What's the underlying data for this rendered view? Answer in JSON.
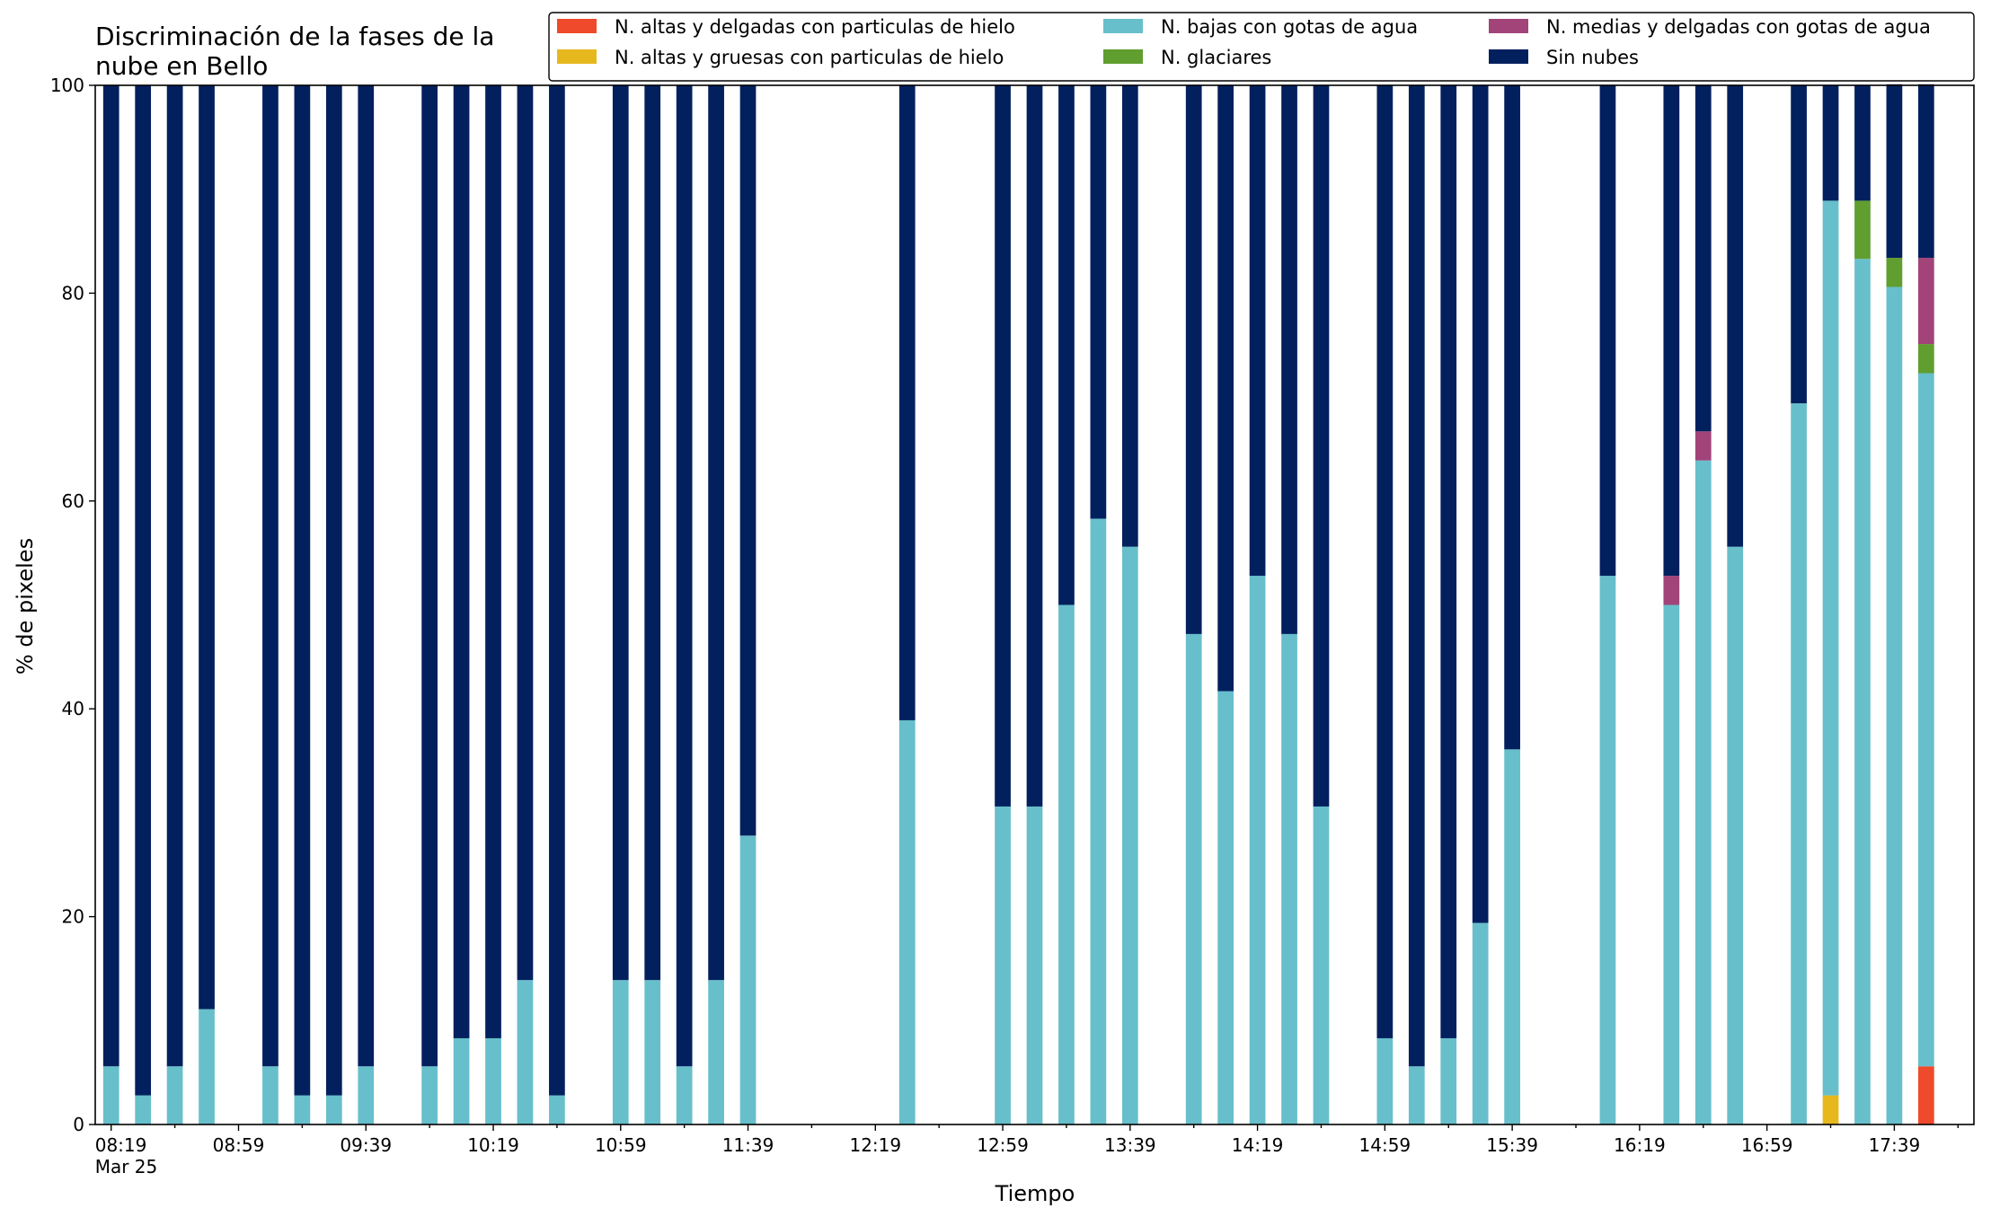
{
  "chart_data": {
    "type": "bar",
    "stacked": true,
    "title": "Discriminación de la fases de la\nnube en Bello",
    "xlabel": "Tiempo",
    "ylabel": "% de pixeles",
    "ylim": [
      0,
      100
    ],
    "yticks": [
      0,
      20,
      40,
      60,
      80,
      100
    ],
    "grid": false,
    "legend_position": "top-right",
    "legend_columns": 3,
    "x_start_minutes": 499,
    "x_step_minutes": 10,
    "x_range_slots": [
      -0.5,
      58.5
    ],
    "xtick_minor_every": 2,
    "xtick_major_every": 4,
    "xtick_labels": [
      "08:19\nMar 25",
      "08:59",
      "09:39",
      "10:19",
      "10:59",
      "11:39",
      "12:19",
      "12:59",
      "13:39",
      "14:19",
      "14:59",
      "15:39",
      "16:19",
      "16:59",
      "17:39"
    ],
    "x": [
      "08:19",
      "08:29",
      "08:39",
      "08:49",
      "09:09",
      "09:19",
      "09:29",
      "09:39",
      "09:59",
      "10:09",
      "10:19",
      "10:29",
      "10:39",
      "10:59",
      "11:09",
      "11:19",
      "11:29",
      "11:39",
      "12:29",
      "12:59",
      "13:09",
      "13:19",
      "13:29",
      "13:39",
      "13:59",
      "14:09",
      "14:19",
      "14:29",
      "14:39",
      "14:59",
      "15:09",
      "15:19",
      "15:29",
      "15:39",
      "16:09",
      "16:29",
      "16:39",
      "16:49",
      "17:09",
      "17:19",
      "17:29",
      "17:39",
      "17:49"
    ],
    "series": [
      {
        "name": "N. altas y delgadas con particulas de hielo",
        "color": "#ef4a2b",
        "values": [
          0,
          0,
          0,
          0,
          0,
          0,
          0,
          0,
          0,
          0,
          0,
          0,
          0,
          0,
          0,
          0,
          0,
          0,
          0,
          0,
          0,
          0,
          0,
          0,
          0,
          0,
          0,
          0,
          0,
          0,
          0,
          0,
          0,
          0,
          0,
          0,
          0,
          0,
          0,
          0,
          0,
          0,
          5.6
        ]
      },
      {
        "name": "N. altas y gruesas con particulas de hielo",
        "color": "#e6b81e",
        "values": [
          0,
          0,
          0,
          0,
          0,
          0,
          0,
          0,
          0,
          0,
          0,
          0,
          0,
          0,
          0,
          0,
          0,
          0,
          0,
          0,
          0,
          0,
          0,
          0,
          0,
          0,
          0,
          0,
          0,
          0,
          0,
          0,
          0,
          0,
          0,
          0,
          0,
          0,
          0,
          2.8,
          0,
          0,
          0
        ]
      },
      {
        "name": "N. bajas con gotas de agua",
        "color": "#67bfcb",
        "values": [
          5.6,
          2.8,
          5.6,
          11.1,
          5.6,
          2.8,
          2.8,
          5.6,
          5.6,
          8.3,
          8.3,
          13.9,
          2.8,
          13.9,
          13.9,
          5.6,
          13.9,
          27.8,
          38.9,
          30.6,
          30.6,
          50.0,
          58.3,
          55.6,
          47.2,
          41.7,
          52.8,
          47.2,
          30.6,
          8.3,
          5.6,
          8.3,
          19.4,
          36.1,
          52.8,
          50.0,
          63.9,
          55.6,
          69.4,
          86.1,
          83.3,
          80.6,
          66.7
        ]
      },
      {
        "name": "N. glaciares",
        "color": "#5f9e2f",
        "values": [
          0,
          0,
          0,
          0,
          0,
          0,
          0,
          0,
          0,
          0,
          0,
          0,
          0,
          0,
          0,
          0,
          0,
          0,
          0,
          0,
          0,
          0,
          0,
          0,
          0,
          0,
          0,
          0,
          0,
          0,
          0,
          0,
          0,
          0,
          0,
          0,
          0,
          0,
          0,
          0,
          5.6,
          2.8,
          2.8
        ]
      },
      {
        "name": "N. medias y delgadas con gotas de agua",
        "color": "#a2437a",
        "values": [
          0,
          0,
          0,
          0,
          0,
          0,
          0,
          0,
          0,
          0,
          0,
          0,
          0,
          0,
          0,
          0,
          0,
          0,
          0,
          0,
          0,
          0,
          0,
          0,
          0,
          0,
          0,
          0,
          0,
          0,
          0,
          0,
          0,
          0,
          0,
          2.8,
          2.8,
          0,
          0,
          0,
          0,
          0,
          8.3
        ]
      },
      {
        "name": "Sin nubes",
        "color": "#03205e",
        "values": [
          94.4,
          97.2,
          94.4,
          88.9,
          94.4,
          97.2,
          97.2,
          94.4,
          94.4,
          91.7,
          91.7,
          86.1,
          97.2,
          86.1,
          86.1,
          94.4,
          86.1,
          72.2,
          61.1,
          69.4,
          69.4,
          50.0,
          41.7,
          44.4,
          52.8,
          58.3,
          47.2,
          52.8,
          69.4,
          91.7,
          94.4,
          91.7,
          80.6,
          63.9,
          47.2,
          47.2,
          33.3,
          44.4,
          30.6,
          11.1,
          11.1,
          16.7,
          16.7
        ]
      }
    ]
  }
}
